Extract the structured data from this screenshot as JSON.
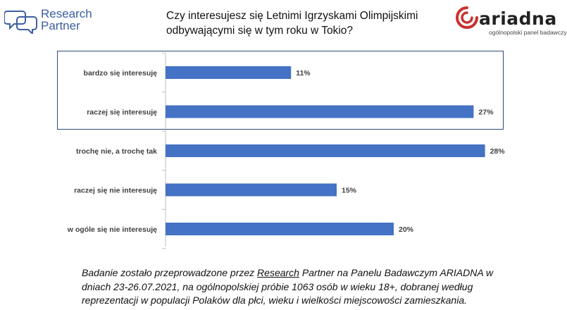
{
  "logos": {
    "research_partner": {
      "line1": "Research",
      "line2": "Partner",
      "color": "#3b5fa0"
    },
    "ariadna": {
      "name": "ariadna",
      "tagline": "ogólnopolski panel badawczy",
      "accent": "#c8322f"
    }
  },
  "title": {
    "line1": "Czy interesujesz się Letnimi Igrzyskami Olimpijskimi",
    "line2": "odbywającymi się w tym roku w Tokio?"
  },
  "chart_data": {
    "type": "bar",
    "orientation": "horizontal",
    "categories": [
      "bardzo się interesuję",
      "raczej się interesuję",
      "trochę nie, a trochę tak",
      "raczej się nie interesuję",
      "w ogóle się nie interesuję"
    ],
    "values": [
      11,
      27,
      28,
      15,
      20
    ],
    "value_labels": [
      "11%",
      "27%",
      "28%",
      "15%",
      "20%"
    ],
    "unit": "%",
    "xlim": [
      0,
      30
    ],
    "grid": false,
    "legend": "none",
    "bar_color": "#4472c4",
    "highlight_box_color": "#2e4a78"
  },
  "note": {
    "part1": "Badanie zostało przeprowadzone przez ",
    "link": "Research",
    "part2": " Partner na Panelu Badawczym ARIADNA w dniach 23-26.07.2021, na ogólnopolskiej próbie 1063 osób w wieku 18+, dobranej według reprezentacji w populacji Polaków dla płci, wieku i wielkości miejscowości zamieszkania."
  }
}
